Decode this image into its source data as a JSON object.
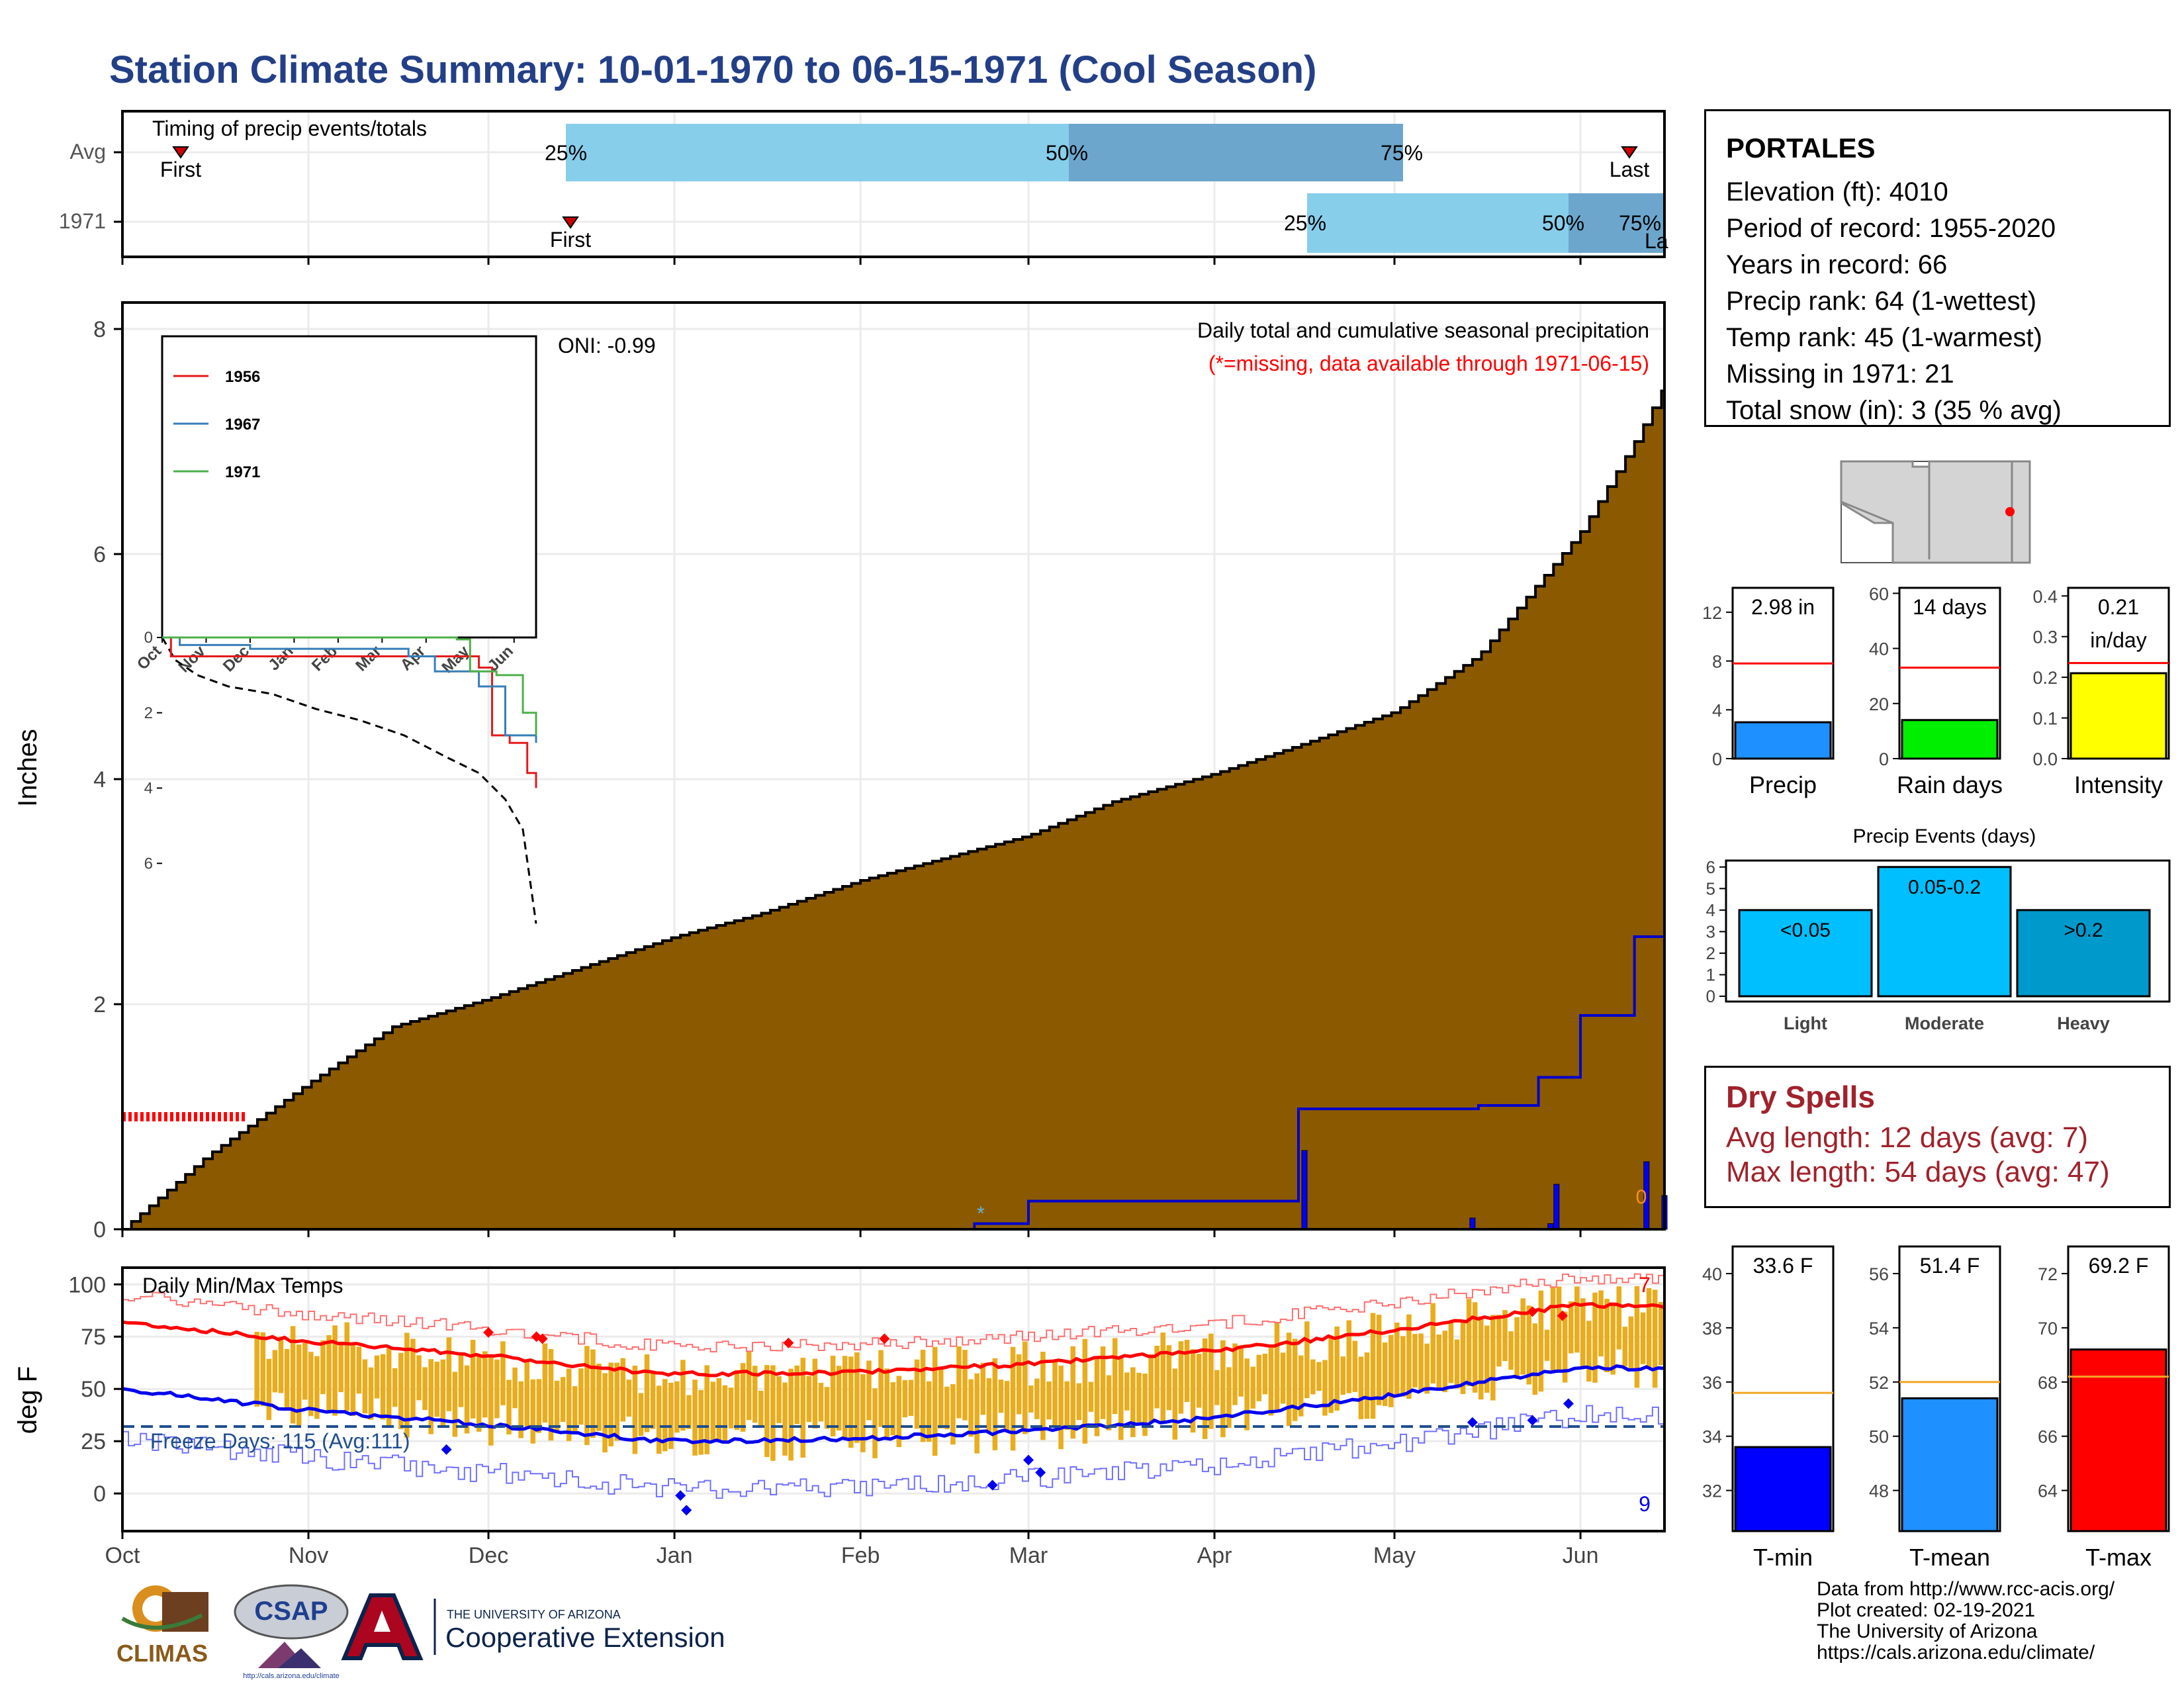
{
  "title": "Station Climate Summary: 10-01-1970 to 06-15-1971 (Cool Season)",
  "timing_panel": {
    "label": "Timing of precip events/totals",
    "rows": [
      "Avg",
      "1971"
    ],
    "avg": {
      "first_label": "First",
      "last_label": "Last",
      "p25": "25%",
      "p50": "50%",
      "p75": "75%"
    },
    "year": {
      "first_label": "First",
      "last_label": "La",
      "p25": "25%",
      "p50": "50%",
      "p75": "75%"
    }
  },
  "precip_panel": {
    "ylabel": "Inches",
    "oni": "ONI: -0.99",
    "caption": "Daily total and cumulative seasonal precipitation",
    "missing_note": "(*=missing, data available through 1971-06-15)",
    "missing_count_label": "0"
  },
  "inset": {
    "legend": [
      "1956",
      "1967",
      "1971"
    ],
    "colors": [
      "#e41a1c",
      "#377eb8",
      "#4daf4a"
    ],
    "months": [
      "Oct",
      "Nov",
      "Dec",
      "Jan",
      "Feb",
      "Mar",
      "Apr",
      "May",
      "Jun"
    ],
    "yticks": [
      "0",
      "2",
      "4",
      "6"
    ]
  },
  "temp_panel": {
    "ylabel": "deg F",
    "label": "Daily Min/Max Temps",
    "freeze_label": "Freeze Days: 115 (Avg:111)",
    "max_count": "7",
    "min_count": "9",
    "yticks": [
      "0",
      "25",
      "50",
      "75",
      "100"
    ]
  },
  "month_axis": [
    "Oct",
    "Nov",
    "Dec",
    "Jan",
    "Feb",
    "Mar",
    "Apr",
    "May",
    "Jun"
  ],
  "info": {
    "station": "PORTALES",
    "lines": [
      "Elevation (ft): 4010",
      "Period of record: 1955-2020",
      "Years in record: 66",
      "Precip rank: 64 (1-wettest)",
      "Temp rank: 45 (1-warmest)",
      "Missing in 1971: 21",
      "Total snow (in): 3 (35 % avg)"
    ]
  },
  "mini_precip": {
    "value_label": "2.98 in",
    "xlabel": "Precip",
    "yticks": [
      "0",
      "4",
      "8",
      "12"
    ]
  },
  "mini_raindays": {
    "value_label": "14 days",
    "xlabel": "Rain days",
    "yticks": [
      "0",
      "20",
      "40",
      "60"
    ]
  },
  "mini_intensity": {
    "value_label_1": "0.21",
    "value_label_2": "in/day",
    "xlabel": "Intensity",
    "yticks": [
      "0.0",
      "0.1",
      "0.2",
      "0.3",
      "0.4"
    ]
  },
  "events": {
    "title": "Precip Events (days)",
    "yticks": [
      "0",
      "1",
      "2",
      "3",
      "4",
      "5",
      "6"
    ]
  },
  "dry_spells": {
    "title": "Dry Spells",
    "avg_length": "Avg length: 12 days (avg: 7)",
    "max_length": "Max length: 54 days (avg: 47)"
  },
  "mini_tmin": {
    "value_label": "33.6 F",
    "xlabel": "T-min",
    "yticks": [
      "32",
      "34",
      "36",
      "38",
      "40"
    ]
  },
  "mini_tmean": {
    "value_label": "51.4 F",
    "xlabel": "T-mean",
    "yticks": [
      "48",
      "50",
      "52",
      "54",
      "56"
    ]
  },
  "mini_tmax": {
    "value_label": "69.2 F",
    "xlabel": "T-max",
    "yticks": [
      "64",
      "66",
      "68",
      "70",
      "72"
    ]
  },
  "credits": [
    "Data from http://www.rcc-acis.org/",
    "Plot created: 02-19-2021",
    "The University of Arizona",
    "https://cals.arizona.edu/climate/"
  ],
  "logos": {
    "climas": "CLIMAS",
    "csap": "CSAP",
    "csap_url": "http://cals.arizona.edu/climate",
    "ua_small": "THE UNIVERSITY OF ARIZONA",
    "ua_big": "Cooperative Extension"
  },
  "colors": {
    "title": "#233f87",
    "cumulative_fill": "#8b5a00",
    "avg_fill": "#dedede",
    "daily_bar": "#0000ff",
    "temp_bar": "#e8ad1e",
    "tmax_line": "#ff0000",
    "tmin_line": "#0000ff",
    "dry_text": "#a0222b"
  },
  "chart_data": [
    {
      "type": "area",
      "title": "Daily total and cumulative seasonal precipitation",
      "ylabel": "Inches",
      "ylim": [
        0,
        8
      ],
      "x_range": [
        "1970-10-01",
        "1971-06-15"
      ],
      "series": [
        {
          "x": [
            "1970-10-01",
            "1970-10-15",
            "1970-11-01",
            "1970-11-15",
            "1970-12-01",
            "1970-12-15",
            "1971-01-01",
            "1971-01-15",
            "1971-02-01",
            "1971-02-15",
            "1971-03-01",
            "1971-03-15",
            "1971-04-01",
            "1971-04-15",
            "1971-05-01",
            "1971-05-15",
            "1971-06-01",
            "1971-06-10",
            "1971-06-15"
          ],
          "y": [
            0.0,
            0.65,
            1.3,
            1.8,
            2.05,
            2.3,
            2.6,
            2.8,
            3.1,
            3.3,
            3.5,
            3.8,
            4.05,
            4.3,
            4.6,
            5.1,
            6.2,
            7.0,
            7.5
          ]
        },
        {
          "x": [
            "1970-10-01",
            "1971-02-20",
            "1971-03-01",
            "1971-04-15",
            "1971-05-15",
            "1971-05-25",
            "1971-06-01",
            "1971-06-10",
            "1971-06-15"
          ],
          "y": [
            0.0,
            0.05,
            0.25,
            1.07,
            1.1,
            1.35,
            1.9,
            2.6,
            3.0
          ]
        }
      ],
      "daily_precip_x": [
        "1971-04-16",
        "1971-05-14",
        "1971-05-27",
        "1971-05-28",
        "1971-06-12",
        "1971-06-15"
      ],
      "daily_precip_y": [
        0.7,
        0.1,
        0.05,
        0.4,
        0.6,
        0.3
      ]
    },
    {
      "type": "line",
      "title": "Daily Min/Max Temps",
      "ylabel": "deg F",
      "ylim": [
        -18,
        108
      ],
      "x": [
        "Oct",
        "Nov",
        "Dec",
        "Jan",
        "Feb",
        "Mar",
        "Apr",
        "May",
        "Jun"
      ],
      "series": [
        {
          "values": [
            82,
            73,
            66,
            57,
            58,
            62,
            68,
            78,
            90
          ]
        },
        {
          "values": [
            50,
            40,
            33,
            25,
            26,
            30,
            36,
            47,
            60
          ]
        }
      ],
      "freeze_days": 115,
      "freeze_days_avg": 111
    },
    {
      "type": "line",
      "x_labels": [
        "Oct",
        "Nov",
        "Dec",
        "Jan",
        "Feb",
        "Mar",
        "Apr",
        "May",
        "Jun"
      ],
      "ylim": [
        0,
        8
      ],
      "series": [
        {
          "name": "1956",
          "x": [
            0,
            0.2,
            6.8,
            7.2,
            7.5,
            7.9,
            8.3,
            8.5
          ],
          "y": [
            0.0,
            0.5,
            0.5,
            0.8,
            2.6,
            2.8,
            3.6,
            4.0
          ]
        },
        {
          "name": "1967",
          "x": [
            0,
            0.4,
            2.0,
            5.6,
            6.2,
            7.2,
            7.8,
            8.5
          ],
          "y": [
            0.0,
            0.2,
            0.3,
            0.5,
            0.9,
            1.3,
            2.6,
            2.8
          ]
        },
        {
          "name": "1971",
          "x": [
            0,
            6.7,
            7.0,
            7.6,
            8.2,
            8.5
          ],
          "y": [
            0.0,
            0.05,
            0.9,
            1.0,
            2.0,
            2.6
          ]
        }
      ]
    },
    {
      "type": "bar",
      "categories": [
        "Precip"
      ],
      "values": [
        2.98
      ],
      "ylim": [
        0,
        14
      ]
    },
    {
      "type": "bar",
      "categories": [
        "Rain days"
      ],
      "values": [
        14
      ],
      "ylim": [
        0,
        62
      ]
    },
    {
      "type": "bar",
      "categories": [
        "Intensity"
      ],
      "values": [
        0.21
      ],
      "ylim": [
        0,
        0.42
      ]
    },
    {
      "type": "bar",
      "title": "Precip Events (days)",
      "categories": [
        "Light",
        "Moderate",
        "Heavy"
      ],
      "labels": [
        "<0.05",
        "0.05-0.2",
        ">0.2"
      ],
      "values": [
        4,
        6,
        4
      ],
      "ylim": [
        0,
        6.3
      ]
    },
    {
      "type": "bar",
      "categories": [
        "T-min"
      ],
      "values": [
        33.6
      ],
      "ylim": [
        30.5,
        41
      ]
    },
    {
      "type": "bar",
      "categories": [
        "T-mean"
      ],
      "values": [
        51.4
      ],
      "ylim": [
        46.5,
        57
      ]
    },
    {
      "type": "bar",
      "categories": [
        "T-max"
      ],
      "values": [
        69.2
      ],
      "ylim": [
        62.5,
        73
      ]
    }
  ]
}
